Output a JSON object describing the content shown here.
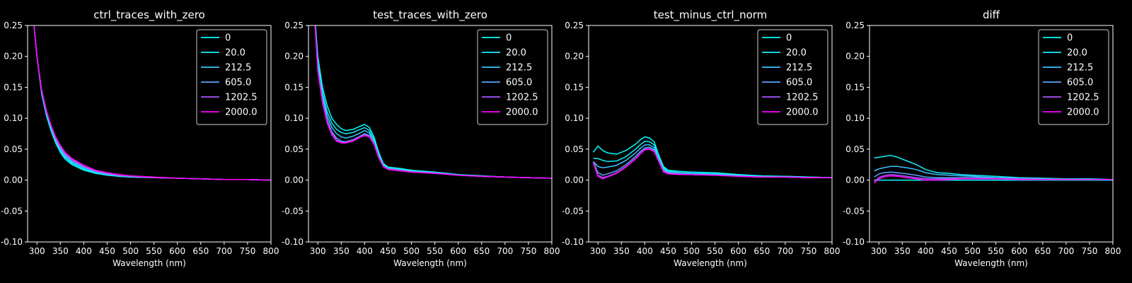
{
  "chart_data": [
    {
      "type": "line",
      "title": "ctrl_traces_with_zero",
      "xlabel": "Wavelength (nm)",
      "ylabel": "",
      "xlim": [
        280,
        800
      ],
      "ylim": [
        -0.1,
        0.25
      ],
      "xticks": [
        300,
        350,
        400,
        450,
        500,
        550,
        600,
        650,
        700,
        750,
        800
      ],
      "yticks": [
        -0.1,
        -0.05,
        0.0,
        0.05,
        0.1,
        0.15,
        0.2,
        0.25
      ],
      "grid": false,
      "legend": "top-right",
      "x": [
        290,
        300,
        310,
        320,
        330,
        340,
        350,
        360,
        375,
        400,
        425,
        450,
        475,
        500,
        550,
        600,
        650,
        700,
        750,
        800
      ],
      "series": [
        {
          "name": "0",
          "color": "#00ffff",
          "values": [
            0.28,
            0.2,
            0.14,
            0.105,
            0.08,
            0.06,
            0.045,
            0.034,
            0.025,
            0.016,
            0.011,
            0.008,
            0.006,
            0.005,
            0.004,
            0.003,
            0.002,
            0.001,
            0.001,
            0.0
          ]
        },
        {
          "name": "20.0",
          "color": "#0fefff",
          "values": [
            0.28,
            0.2,
            0.142,
            0.108,
            0.083,
            0.063,
            0.048,
            0.037,
            0.027,
            0.018,
            0.012,
            0.009,
            0.007,
            0.005,
            0.004,
            0.003,
            0.002,
            0.001,
            0.001,
            0.0
          ]
        },
        {
          "name": "212.5",
          "color": "#3cc3ff",
          "values": [
            0.28,
            0.2,
            0.143,
            0.11,
            0.085,
            0.065,
            0.05,
            0.039,
            0.029,
            0.02,
            0.013,
            0.009,
            0.007,
            0.006,
            0.004,
            0.003,
            0.002,
            0.001,
            0.001,
            0.0
          ]
        },
        {
          "name": "605.0",
          "color": "#5aa5ff",
          "values": [
            0.28,
            0.2,
            0.144,
            0.111,
            0.087,
            0.067,
            0.052,
            0.041,
            0.031,
            0.021,
            0.014,
            0.01,
            0.008,
            0.006,
            0.004,
            0.003,
            0.002,
            0.001,
            0.001,
            0.0
          ]
        },
        {
          "name": "1202.5",
          "color": "#aa55ff",
          "values": [
            0.28,
            0.2,
            0.145,
            0.112,
            0.088,
            0.068,
            0.054,
            0.043,
            0.033,
            0.022,
            0.015,
            0.011,
            0.008,
            0.006,
            0.004,
            0.003,
            0.002,
            0.001,
            0.001,
            0.0
          ]
        },
        {
          "name": "2000.0",
          "color": "#ff00ff",
          "values": [
            0.28,
            0.2,
            0.146,
            0.113,
            0.089,
            0.07,
            0.056,
            0.045,
            0.035,
            0.024,
            0.016,
            0.012,
            0.009,
            0.007,
            0.005,
            0.003,
            0.002,
            0.001,
            0.001,
            0.0
          ]
        }
      ]
    },
    {
      "type": "line",
      "title": "test_traces_with_zero",
      "xlabel": "Wavelength (nm)",
      "ylabel": "",
      "xlim": [
        280,
        800
      ],
      "ylim": [
        -0.1,
        0.25
      ],
      "xticks": [
        300,
        350,
        400,
        450,
        500,
        550,
        600,
        650,
        700,
        750,
        800
      ],
      "yticks": [
        -0.1,
        -0.05,
        0.0,
        0.05,
        0.1,
        0.15,
        0.2,
        0.25
      ],
      "grid": false,
      "legend": "top-right",
      "x": [
        290,
        300,
        310,
        320,
        330,
        340,
        350,
        360,
        375,
        390,
        400,
        410,
        420,
        430,
        440,
        450,
        475,
        500,
        550,
        600,
        650,
        700,
        750,
        800
      ],
      "series": [
        {
          "name": "0",
          "color": "#00ffff",
          "values": [
            0.3,
            0.2,
            0.15,
            0.12,
            0.1,
            0.09,
            0.083,
            0.08,
            0.082,
            0.087,
            0.09,
            0.085,
            0.07,
            0.045,
            0.027,
            0.021,
            0.019,
            0.016,
            0.013,
            0.009,
            0.007,
            0.005,
            0.004,
            0.003
          ]
        },
        {
          "name": "20.0",
          "color": "#0fefff",
          "values": [
            0.3,
            0.19,
            0.142,
            0.11,
            0.092,
            0.082,
            0.077,
            0.075,
            0.077,
            0.082,
            0.085,
            0.08,
            0.066,
            0.042,
            0.025,
            0.02,
            0.018,
            0.015,
            0.012,
            0.008,
            0.006,
            0.005,
            0.004,
            0.003
          ]
        },
        {
          "name": "212.5",
          "color": "#3cc3ff",
          "values": [
            0.3,
            0.185,
            0.135,
            0.103,
            0.085,
            0.075,
            0.07,
            0.068,
            0.071,
            0.076,
            0.08,
            0.076,
            0.062,
            0.04,
            0.024,
            0.019,
            0.017,
            0.014,
            0.012,
            0.008,
            0.006,
            0.005,
            0.004,
            0.003
          ]
        },
        {
          "name": "605.0",
          "color": "#5aa5ff",
          "values": [
            0.3,
            0.18,
            0.13,
            0.097,
            0.078,
            0.068,
            0.063,
            0.062,
            0.065,
            0.071,
            0.075,
            0.072,
            0.06,
            0.038,
            0.023,
            0.018,
            0.016,
            0.014,
            0.011,
            0.008,
            0.006,
            0.005,
            0.004,
            0.003
          ]
        },
        {
          "name": "1202.5",
          "color": "#aa55ff",
          "values": [
            0.3,
            0.178,
            0.127,
            0.094,
            0.075,
            0.065,
            0.061,
            0.061,
            0.064,
            0.07,
            0.073,
            0.071,
            0.059,
            0.037,
            0.022,
            0.018,
            0.016,
            0.013,
            0.011,
            0.008,
            0.006,
            0.005,
            0.004,
            0.003
          ]
        },
        {
          "name": "2000.0",
          "color": "#ff00ff",
          "values": [
            0.3,
            0.176,
            0.125,
            0.092,
            0.073,
            0.063,
            0.06,
            0.06,
            0.063,
            0.069,
            0.072,
            0.07,
            0.058,
            0.036,
            0.022,
            0.017,
            0.015,
            0.013,
            0.011,
            0.008,
            0.006,
            0.005,
            0.004,
            0.003
          ]
        }
      ]
    },
    {
      "type": "line",
      "title": "test_minus_ctrl_norm",
      "xlabel": "Wavelength (nm)",
      "ylabel": "",
      "xlim": [
        280,
        800
      ],
      "ylim": [
        -0.1,
        0.25
      ],
      "xticks": [
        300,
        350,
        400,
        450,
        500,
        550,
        600,
        650,
        700,
        750,
        800
      ],
      "yticks": [
        -0.1,
        -0.05,
        0.0,
        0.05,
        0.1,
        0.15,
        0.2,
        0.25
      ],
      "grid": false,
      "legend": "top-right",
      "x": [
        290,
        300,
        310,
        320,
        340,
        360,
        380,
        390,
        400,
        410,
        420,
        430,
        440,
        450,
        475,
        500,
        550,
        600,
        650,
        700,
        750,
        800
      ],
      "series": [
        {
          "name": "0",
          "color": "#00ffff",
          "values": [
            0.045,
            0.055,
            0.048,
            0.044,
            0.042,
            0.048,
            0.058,
            0.065,
            0.07,
            0.068,
            0.062,
            0.04,
            0.022,
            0.016,
            0.014,
            0.013,
            0.012,
            0.009,
            0.007,
            0.006,
            0.005,
            0.004
          ]
        },
        {
          "name": "20.0",
          "color": "#0fefff",
          "values": [
            0.035,
            0.035,
            0.032,
            0.03,
            0.031,
            0.038,
            0.05,
            0.057,
            0.063,
            0.062,
            0.057,
            0.037,
            0.02,
            0.014,
            0.012,
            0.011,
            0.01,
            0.008,
            0.006,
            0.006,
            0.005,
            0.004
          ]
        },
        {
          "name": "212.5",
          "color": "#3cc3ff",
          "values": [
            0.03,
            0.022,
            0.02,
            0.021,
            0.024,
            0.032,
            0.044,
            0.051,
            0.057,
            0.057,
            0.052,
            0.034,
            0.018,
            0.013,
            0.011,
            0.01,
            0.009,
            0.007,
            0.006,
            0.005,
            0.004,
            0.004
          ]
        },
        {
          "name": "605.0",
          "color": "#5aa5ff",
          "values": [
            0.03,
            0.012,
            0.008,
            0.01,
            0.015,
            0.025,
            0.038,
            0.046,
            0.052,
            0.053,
            0.049,
            0.032,
            0.016,
            0.012,
            0.01,
            0.009,
            0.008,
            0.007,
            0.005,
            0.005,
            0.004,
            0.004
          ]
        },
        {
          "name": "1202.5",
          "color": "#aa55ff",
          "values": [
            0.028,
            0.008,
            0.004,
            0.006,
            0.012,
            0.022,
            0.035,
            0.043,
            0.05,
            0.051,
            0.047,
            0.03,
            0.014,
            0.011,
            0.01,
            0.009,
            0.008,
            0.006,
            0.005,
            0.005,
            0.004,
            0.004
          ]
        },
        {
          "name": "2000.0",
          "color": "#ff00ff",
          "values": [
            0.028,
            0.006,
            0.002,
            0.005,
            0.011,
            0.021,
            0.034,
            0.042,
            0.049,
            0.05,
            0.046,
            0.03,
            0.013,
            0.01,
            0.009,
            0.009,
            0.008,
            0.006,
            0.005,
            0.005,
            0.004,
            0.004
          ]
        }
      ]
    },
    {
      "type": "line",
      "title": "diff",
      "xlabel": "Wavelength (nm)",
      "ylabel": "",
      "xlim": [
        280,
        800
      ],
      "ylim": [
        -0.1,
        0.25
      ],
      "xticks": [
        300,
        350,
        400,
        450,
        500,
        550,
        600,
        650,
        700,
        750,
        800
      ],
      "yticks": [
        -0.1,
        -0.05,
        0.0,
        0.05,
        0.1,
        0.15,
        0.2,
        0.25
      ],
      "grid": false,
      "legend": "top-right",
      "x": [
        290,
        300,
        310,
        325,
        340,
        360,
        380,
        400,
        425,
        450,
        475,
        500,
        550,
        600,
        650,
        700,
        750,
        800
      ],
      "series": [
        {
          "name": "0",
          "color": "#00ffff",
          "values": [
            0.0,
            0.0,
            0.0,
            0.0,
            0.0,
            0.0,
            0.0,
            0.0,
            0.0,
            0.0,
            0.0,
            0.0,
            0.0,
            0.0,
            0.0,
            0.0,
            0.0,
            0.0
          ]
        },
        {
          "name": "20.0",
          "color": "#0fefff",
          "values": [
            0.036,
            0.037,
            0.038,
            0.04,
            0.037,
            0.031,
            0.025,
            0.017,
            0.012,
            0.011,
            0.009,
            0.008,
            0.006,
            0.004,
            0.003,
            0.002,
            0.002,
            0.001
          ]
        },
        {
          "name": "212.5",
          "color": "#3cc3ff",
          "values": [
            0.015,
            0.018,
            0.02,
            0.022,
            0.022,
            0.02,
            0.017,
            0.012,
            0.009,
            0.008,
            0.007,
            0.006,
            0.004,
            0.003,
            0.002,
            0.002,
            0.001,
            0.001
          ]
        },
        {
          "name": "605.0",
          "color": "#5aa5ff",
          "values": [
            0.005,
            0.01,
            0.012,
            0.013,
            0.012,
            0.01,
            0.008,
            0.005,
            0.004,
            0.004,
            0.004,
            0.004,
            0.003,
            0.002,
            0.002,
            0.001,
            0.001,
            0.001
          ]
        },
        {
          "name": "1202.5",
          "color": "#aa55ff",
          "values": [
            -0.002,
            0.004,
            0.007,
            0.009,
            0.008,
            0.006,
            0.004,
            0.002,
            0.002,
            0.002,
            0.003,
            0.003,
            0.002,
            0.002,
            0.001,
            0.001,
            0.001,
            0.001
          ]
        },
        {
          "name": "2000.0",
          "color": "#ff00ff",
          "values": [
            -0.005,
            0.002,
            0.005,
            0.007,
            0.006,
            0.004,
            0.002,
            0.0,
            0.0,
            0.001,
            0.002,
            0.002,
            0.002,
            0.001,
            0.001,
            0.001,
            0.001,
            0.001
          ]
        }
      ]
    }
  ]
}
